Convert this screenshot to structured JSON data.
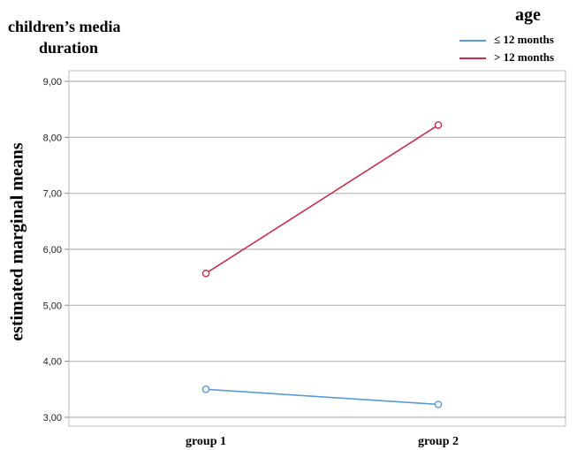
{
  "chart_data": {
    "type": "line",
    "title": "children’s media duration",
    "title_lines": [
      "children’s media",
      "duration"
    ],
    "ylabel": "estimated marginal means",
    "xlabel": "",
    "categories": [
      "group 1",
      "group 2"
    ],
    "ylim": [
      2.95,
      9.1
    ],
    "yticks": [
      "3,00",
      "4,00",
      "5,00",
      "6,00",
      "7,00",
      "8,00",
      "9,00"
    ],
    "ytick_values": [
      3,
      4,
      5,
      6,
      7,
      8,
      9
    ],
    "grid": true,
    "legend_title": "age",
    "legend_position": "top-right",
    "series": [
      {
        "name": "≤ 12 months",
        "values": [
          3.5,
          3.23
        ],
        "color": "#5b9bd5"
      },
      {
        "name": "> 12 months",
        "values": [
          5.57,
          8.22
        ],
        "color": "#c0314f"
      }
    ]
  }
}
